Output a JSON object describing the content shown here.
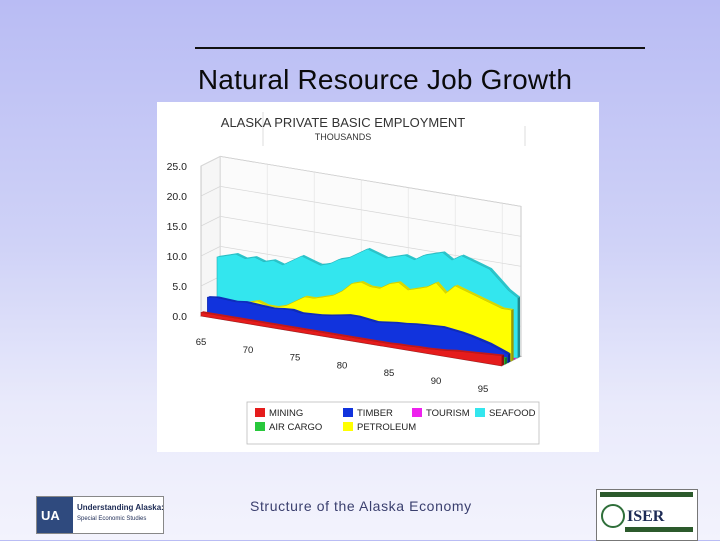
{
  "slide": {
    "title": "Natural Resource Job Growth",
    "footer": "Structure of the Alaska Economy"
  },
  "logos": {
    "left": {
      "mark": "UA",
      "line1": "Understanding Alaska:",
      "line2": "Special Economic Studies"
    },
    "right": {
      "text": "ISER"
    }
  },
  "colors": {
    "mining": "#e51c1c",
    "air_cargo": "#28c83c",
    "timber": "#1133dd",
    "petroleum": "#ffff00",
    "tourism": "#ee22ee",
    "seafood": "#33e6ee"
  },
  "chart_data": {
    "type": "area",
    "title": "ALASKA PRIVATE BASIC EMPLOYMENT",
    "subtitle": "THOUSANDS",
    "projection": "3d",
    "grid": true,
    "legend_position": "bottom",
    "ylim": [
      0,
      25
    ],
    "y_ticks": [
      "0.0",
      "5.0",
      "10.0",
      "15.0",
      "20.0",
      "25.0"
    ],
    "x_ticks": [
      "65",
      "70",
      "75",
      "80",
      "85",
      "90",
      "95"
    ],
    "x": [
      65,
      66,
      67,
      68,
      69,
      70,
      71,
      72,
      73,
      74,
      75,
      76,
      77,
      78,
      79,
      80,
      81,
      82,
      83,
      84,
      85,
      86,
      87,
      88,
      89,
      90,
      91,
      92,
      93,
      94,
      95,
      96,
      97
    ],
    "series": [
      {
        "name": "MINING",
        "key": "mining",
        "depth": 0,
        "values": [
          0.6,
          0.6,
          0.6,
          0.6,
          0.6,
          0.6,
          0.6,
          0.6,
          0.6,
          0.6,
          0.6,
          0.6,
          0.6,
          0.6,
          0.6,
          0.6,
          0.6,
          0.6,
          0.6,
          0.6,
          0.6,
          0.7,
          0.7,
          0.8,
          0.8,
          0.9,
          1.0,
          1.2,
          1.3,
          1.4,
          1.5,
          1.6,
          1.7
        ]
      },
      {
        "name": "AIR CARGO",
        "key": "air_cargo",
        "depth": 1,
        "values": [
          0,
          0,
          0,
          0,
          0,
          0,
          0,
          0,
          0,
          0,
          0,
          0,
          0,
          0,
          0,
          0,
          0,
          0,
          0,
          0,
          0,
          0,
          0,
          0,
          0,
          0.3,
          0.4,
          0.5,
          0.6,
          0.7,
          0.8,
          0.9,
          1.0
        ]
      },
      {
        "name": "TIMBER",
        "key": "timber",
        "depth": 2,
        "values": [
          2.6,
          2.8,
          2.7,
          2.6,
          2.8,
          2.7,
          2.6,
          2.5,
          2.7,
          2.8,
          2.5,
          2.6,
          2.7,
          2.9,
          3.2,
          3.5,
          3.5,
          3.3,
          3.1,
          3.3,
          3.5,
          3.6,
          3.8,
          3.9,
          4.0,
          4.1,
          3.9,
          3.7,
          3.4,
          3.0,
          2.6,
          2.0,
          1.4
        ]
      },
      {
        "name": "PETROLEUM",
        "key": "petroleum",
        "depth": 3,
        "values": [
          0.5,
          0.7,
          1.0,
          1.5,
          2.5,
          3.0,
          2.5,
          2.5,
          3.0,
          4.0,
          5.0,
          5.0,
          5.5,
          6.0,
          7.0,
          8.5,
          9.0,
          8.5,
          8.5,
          9.5,
          10.0,
          9.0,
          9.5,
          10.0,
          11.0,
          9.5,
          11.0,
          10.5,
          10.0,
          9.5,
          9.0,
          8.5,
          8.5
        ]
      },
      {
        "name": "TOURISM",
        "key": "tourism",
        "depth": 4,
        "values": [
          0,
          0,
          0,
          0,
          0,
          0,
          0,
          0,
          0,
          0,
          0,
          0,
          0,
          0,
          0,
          0,
          0,
          0,
          0,
          0,
          0,
          0,
          0,
          0,
          0,
          0,
          0,
          0,
          0,
          0,
          0,
          0,
          0
        ]
      },
      {
        "name": "SEAFOOD",
        "key": "seafood",
        "depth": 5,
        "values": [
          8.5,
          9.0,
          9.5,
          9.0,
          9.5,
          9.0,
          9.5,
          9.0,
          10.0,
          11.0,
          10.5,
          10.0,
          10.5,
          11.5,
          12.0,
          13.0,
          14.0,
          13.5,
          13.0,
          13.5,
          14.0,
          13.5,
          14.5,
          15.0,
          15.5,
          14.5,
          15.5,
          15.0,
          14.5,
          14.0,
          12.5,
          11.0,
          10.0
        ]
      }
    ]
  }
}
